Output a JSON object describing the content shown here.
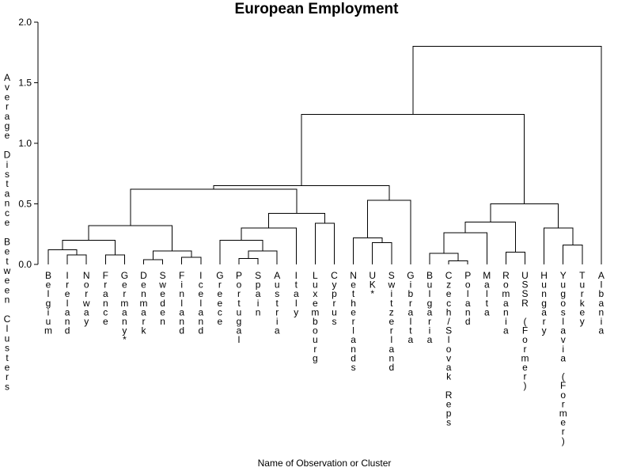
{
  "chart_data": {
    "type": "dendrogram",
    "title": "European Employment",
    "xlabel": "Name of Observation or Cluster",
    "ylabel": "Average Distance Between Clusters",
    "ylim": [
      0,
      2.0
    ],
    "yticks": [
      {
        "value": 0.0,
        "label": "0.0"
      },
      {
        "value": 0.5,
        "label": "0.5"
      },
      {
        "value": 1.0,
        "label": "1.0"
      },
      {
        "value": 1.5,
        "label": "1.5"
      },
      {
        "value": 2.0,
        "label": "2.0"
      }
    ],
    "leaves": [
      "Belgium",
      "Ireland",
      "Norway",
      "France",
      "Germany*",
      "Denmark",
      "Sweden",
      "Finland",
      "Iceland",
      "Greece",
      "Portugal",
      "Spain",
      "Austria",
      "Italy",
      "Luxembourg",
      "Cyprus",
      "Netherlands",
      "UK*",
      "Switzerland",
      "Gibralta",
      "Bulgaria",
      "Czech/Slovak Reps",
      "Poland",
      "Malta",
      "Romania",
      "USSR (Former)",
      "Hungary",
      "Yugoslavia (Former)",
      "Turkey",
      "Albania"
    ],
    "merges": [
      {
        "id": "C1",
        "left": "Ireland",
        "right": "Norway",
        "height": 0.08
      },
      {
        "id": "C2",
        "left": "Belgium",
        "right": "C1",
        "height": 0.12
      },
      {
        "id": "C3",
        "left": "France",
        "right": "Germany*",
        "height": 0.08
      },
      {
        "id": "C4",
        "left": "C2",
        "right": "C3",
        "height": 0.2
      },
      {
        "id": "C5",
        "left": "Denmark",
        "right": "Sweden",
        "height": 0.04
      },
      {
        "id": "C6",
        "left": "Finland",
        "right": "Iceland",
        "height": 0.06
      },
      {
        "id": "C7",
        "left": "C5",
        "right": "C6",
        "height": 0.11
      },
      {
        "id": "C8",
        "left": "C4",
        "right": "C7",
        "height": 0.32
      },
      {
        "id": "C9",
        "left": "Portugal",
        "right": "Spain",
        "height": 0.05
      },
      {
        "id": "C10",
        "left": "C9",
        "right": "Austria",
        "height": 0.11
      },
      {
        "id": "C11",
        "left": "Greece",
        "right": "C10",
        "height": 0.2
      },
      {
        "id": "C12",
        "left": "C11",
        "right": "Italy",
        "height": 0.3
      },
      {
        "id": "C13",
        "left": "Luxembourg",
        "right": "Cyprus",
        "height": 0.34
      },
      {
        "id": "C14",
        "left": "C12",
        "right": "C13",
        "height": 0.42
      },
      {
        "id": "C15",
        "left": "C8",
        "right": "C14",
        "height": 0.62
      },
      {
        "id": "C16",
        "left": "UK*",
        "right": "Switzerland",
        "height": 0.18
      },
      {
        "id": "C17",
        "left": "Netherlands",
        "right": "C16",
        "height": 0.22
      },
      {
        "id": "C18",
        "left": "C17",
        "right": "Gibralta",
        "height": 0.53
      },
      {
        "id": "C19",
        "left": "C15",
        "right": "C18",
        "height": 0.65
      },
      {
        "id": "C20",
        "left": "Czech/Slovak Reps",
        "right": "Poland",
        "height": 0.03
      },
      {
        "id": "C21",
        "left": "Bulgaria",
        "right": "C20",
        "height": 0.09
      },
      {
        "id": "C22",
        "left": "C21",
        "right": "Malta",
        "height": 0.26
      },
      {
        "id": "C23",
        "left": "Romania",
        "right": "USSR (Former)",
        "height": 0.1
      },
      {
        "id": "C24",
        "left": "C22",
        "right": "C23",
        "height": 0.35
      },
      {
        "id": "C25",
        "left": "Yugoslavia (Former)",
        "right": "Turkey",
        "height": 0.16
      },
      {
        "id": "C26",
        "left": "Hungary",
        "right": "C25",
        "height": 0.3
      },
      {
        "id": "C27",
        "left": "C24",
        "right": "C26",
        "height": 0.5
      },
      {
        "id": "C28",
        "left": "C19",
        "right": "C27",
        "height": 1.24
      },
      {
        "id": "C29",
        "left": "C28",
        "right": "Albania",
        "height": 1.8
      }
    ]
  }
}
